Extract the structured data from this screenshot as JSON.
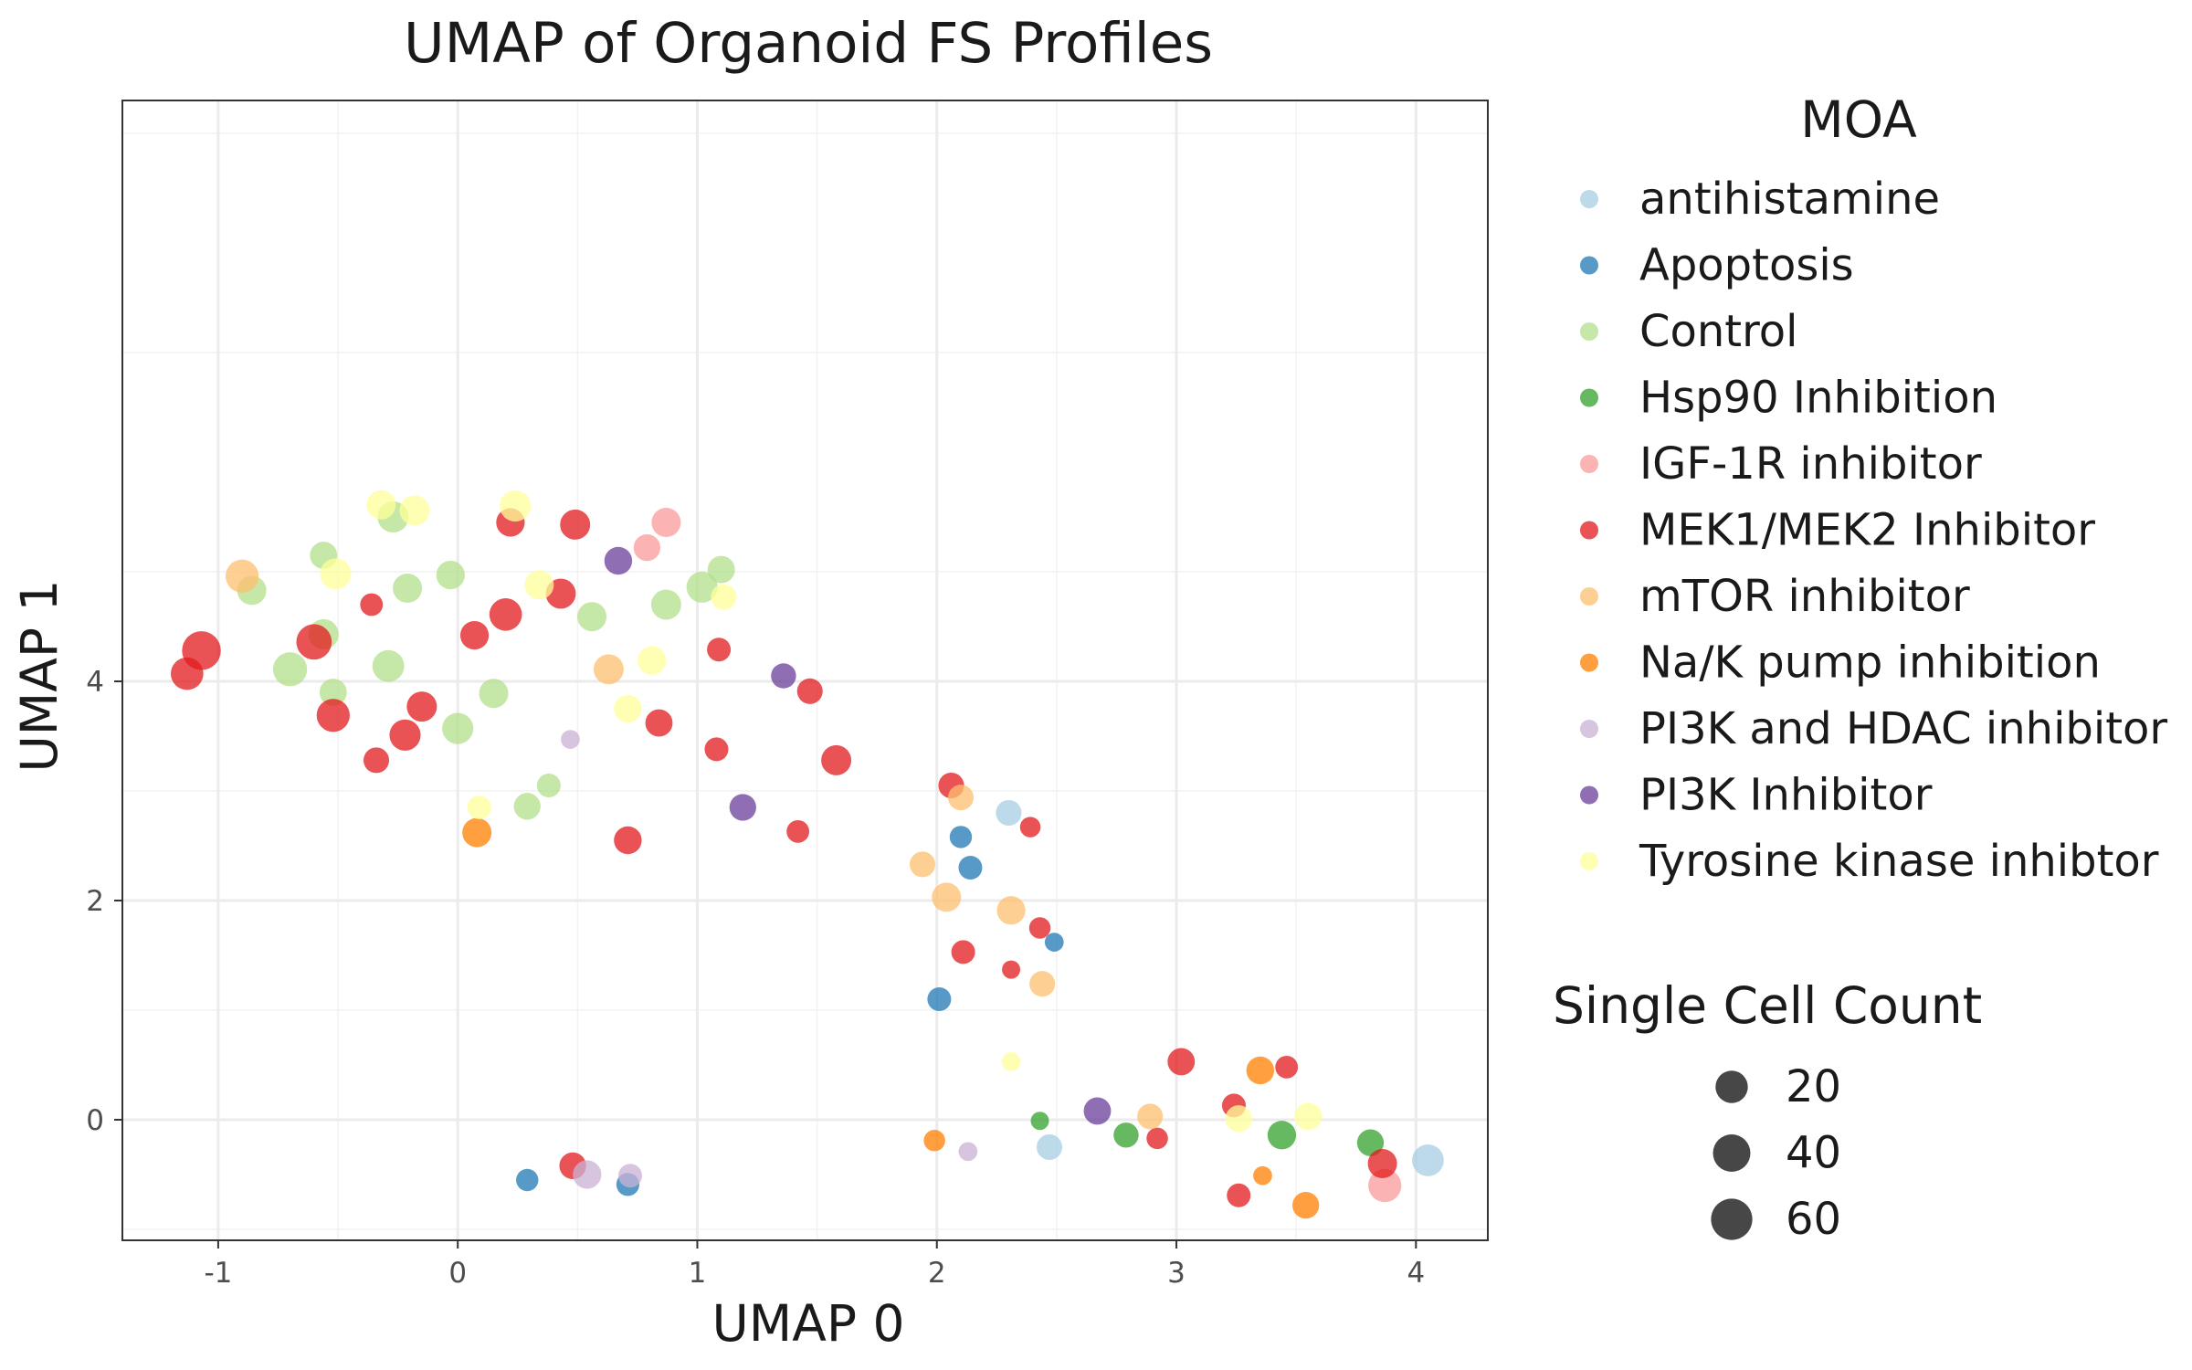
{
  "chart_data": {
    "type": "scatter",
    "title": "UMAP of Organoid FS Profiles",
    "xlabel": "UMAP 0",
    "ylabel": "UMAP 1",
    "xlim": [
      -1.4,
      4.3
    ],
    "ylim": [
      -1.1,
      9.3
    ],
    "x_ticks": [
      -1,
      0,
      1,
      2,
      3,
      4
    ],
    "x_tick_labels": [
      "-1",
      "0",
      "1",
      "2",
      "3",
      "4"
    ],
    "y_ticks": [
      0,
      2,
      4
    ],
    "y_tick_labels": [
      "0",
      "2",
      "4"
    ],
    "grid": true,
    "legend_position": "right",
    "color_legend_title": "MOA",
    "size_legend_title": "Single Cell Count",
    "size_legend": [
      {
        "value": 20,
        "label": "20"
      },
      {
        "value": 40,
        "label": "40"
      },
      {
        "value": 60,
        "label": "60"
      }
    ],
    "series": [
      {
        "name": "antihistamine",
        "color": "#a6cee3",
        "points": [
          {
            "x": 2.3,
            "y": 2.8,
            "size": 22
          },
          {
            "x": 2.47,
            "y": -0.25,
            "size": 22
          },
          {
            "x": 4.05,
            "y": -0.37,
            "size": 48
          }
        ]
      },
      {
        "name": "Apoptosis",
        "color": "#1f78b4",
        "points": [
          {
            "x": 2.1,
            "y": 2.58,
            "size": 12
          },
          {
            "x": 2.14,
            "y": 2.3,
            "size": 16
          },
          {
            "x": 2.49,
            "y": 1.62,
            "size": 5
          },
          {
            "x": 2.01,
            "y": 1.1,
            "size": 16
          },
          {
            "x": 0.29,
            "y": -0.55,
            "size": 12
          },
          {
            "x": 0.71,
            "y": -0.59,
            "size": 14
          }
        ]
      },
      {
        "name": "Control",
        "color": "#b2df8a",
        "points": [
          {
            "x": -0.27,
            "y": 5.5,
            "size": 45
          },
          {
            "x": -0.56,
            "y": 5.15,
            "size": 28
          },
          {
            "x": -0.86,
            "y": 4.83,
            "size": 36
          },
          {
            "x": -0.21,
            "y": 4.85,
            "size": 36
          },
          {
            "x": -0.03,
            "y": 4.97,
            "size": 33
          },
          {
            "x": 1.02,
            "y": 4.86,
            "size": 45
          },
          {
            "x": 1.1,
            "y": 5.02,
            "size": 28
          },
          {
            "x": 0.87,
            "y": 4.7,
            "size": 40
          },
          {
            "x": 0.56,
            "y": 4.59,
            "size": 36
          },
          {
            "x": -0.56,
            "y": 4.43,
            "size": 40
          },
          {
            "x": -0.7,
            "y": 4.11,
            "size": 60
          },
          {
            "x": -0.29,
            "y": 4.14,
            "size": 48
          },
          {
            "x": -0.52,
            "y": 3.9,
            "size": 28
          },
          {
            "x": 0.15,
            "y": 3.89,
            "size": 36
          },
          {
            "x": 0.0,
            "y": 3.57,
            "size": 45
          },
          {
            "x": 0.38,
            "y": 3.05,
            "size": 16
          },
          {
            "x": 0.29,
            "y": 2.86,
            "size": 26
          }
        ]
      },
      {
        "name": "Hsp90 Inhibition",
        "color": "#33a02c",
        "points": [
          {
            "x": 2.43,
            "y": -0.01,
            "size": 4
          },
          {
            "x": 2.79,
            "y": -0.14,
            "size": 20
          },
          {
            "x": 3.44,
            "y": -0.14,
            "size": 33
          },
          {
            "x": 3.81,
            "y": -0.21,
            "size": 26
          }
        ]
      },
      {
        "name": "IGF-1R inhibitor",
        "color": "#fb9a99",
        "points": [
          {
            "x": 0.87,
            "y": 5.45,
            "size": 36
          },
          {
            "x": 0.79,
            "y": 5.22,
            "size": 26
          },
          {
            "x": 3.87,
            "y": -0.6,
            "size": 55
          }
        ]
      },
      {
        "name": "MEK1/MEK2 Inhibitor",
        "color": "#e31a1c",
        "points": [
          {
            "x": 0.22,
            "y": 5.45,
            "size": 33
          },
          {
            "x": 0.49,
            "y": 5.43,
            "size": 40
          },
          {
            "x": -0.36,
            "y": 4.7,
            "size": 13
          },
          {
            "x": 0.43,
            "y": 4.8,
            "size": 40
          },
          {
            "x": 0.2,
            "y": 4.61,
            "size": 52
          },
          {
            "x": 0.07,
            "y": 4.42,
            "size": 33
          },
          {
            "x": -1.07,
            "y": 4.28,
            "size": 90
          },
          {
            "x": -0.6,
            "y": 4.36,
            "size": 68
          },
          {
            "x": -1.13,
            "y": 4.07,
            "size": 52
          },
          {
            "x": 1.09,
            "y": 4.29,
            "size": 16
          },
          {
            "x": 1.47,
            "y": 3.91,
            "size": 22
          },
          {
            "x": -0.15,
            "y": 3.77,
            "size": 40
          },
          {
            "x": -0.52,
            "y": 3.69,
            "size": 55
          },
          {
            "x": -0.22,
            "y": 3.51,
            "size": 45
          },
          {
            "x": 0.84,
            "y": 3.62,
            "size": 28
          },
          {
            "x": -0.34,
            "y": 3.28,
            "size": 22
          },
          {
            "x": 1.08,
            "y": 3.38,
            "size": 16
          },
          {
            "x": 1.58,
            "y": 3.28,
            "size": 40
          },
          {
            "x": 2.06,
            "y": 3.05,
            "size": 22
          },
          {
            "x": 2.39,
            "y": 2.67,
            "size": 8
          },
          {
            "x": 1.42,
            "y": 2.63,
            "size": 13
          },
          {
            "x": 0.71,
            "y": 2.55,
            "size": 30
          },
          {
            "x": 2.43,
            "y": 1.75,
            "size": 10
          },
          {
            "x": 2.11,
            "y": 1.53,
            "size": 16
          },
          {
            "x": 2.31,
            "y": 1.37,
            "size": 4
          },
          {
            "x": 3.02,
            "y": 0.53,
            "size": 28
          },
          {
            "x": 3.46,
            "y": 0.48,
            "size": 13
          },
          {
            "x": 3.24,
            "y": 0.13,
            "size": 16
          },
          {
            "x": 2.92,
            "y": -0.17,
            "size": 10
          },
          {
            "x": 0.48,
            "y": -0.42,
            "size": 26
          },
          {
            "x": 3.86,
            "y": -0.4,
            "size": 36
          },
          {
            "x": 3.26,
            "y": -0.69,
            "size": 16
          }
        ]
      },
      {
        "name": "mTOR inhibitor",
        "color": "#fdbf6f",
        "points": [
          {
            "x": -0.9,
            "y": 4.96,
            "size": 55
          },
          {
            "x": 0.63,
            "y": 4.11,
            "size": 40
          },
          {
            "x": 2.1,
            "y": 2.94,
            "size": 22
          },
          {
            "x": 1.94,
            "y": 2.33,
            "size": 22
          },
          {
            "x": 2.04,
            "y": 2.03,
            "size": 36
          },
          {
            "x": 2.31,
            "y": 1.91,
            "size": 33
          },
          {
            "x": 2.44,
            "y": 1.24,
            "size": 22
          },
          {
            "x": 2.89,
            "y": 0.03,
            "size": 22
          }
        ]
      },
      {
        "name": "Na/K pump inhibition",
        "color": "#ff7f00",
        "points": [
          {
            "x": 0.08,
            "y": 2.62,
            "size": 36
          },
          {
            "x": 3.35,
            "y": 0.45,
            "size": 30
          },
          {
            "x": 1.99,
            "y": -0.19,
            "size": 10
          },
          {
            "x": 3.36,
            "y": -0.51,
            "size": 5
          },
          {
            "x": 3.54,
            "y": -0.78,
            "size": 26
          }
        ]
      },
      {
        "name": "PI3K and HDAC inhibitor",
        "color": "#cab2d6",
        "points": [
          {
            "x": 0.47,
            "y": 3.47,
            "size": 5
          },
          {
            "x": 2.13,
            "y": -0.29,
            "size": 5
          },
          {
            "x": 0.54,
            "y": -0.5,
            "size": 33
          },
          {
            "x": 0.72,
            "y": -0.51,
            "size": 16
          }
        ]
      },
      {
        "name": "PI3K Inhibitor",
        "color": "#6a3d9a",
        "points": [
          {
            "x": 0.67,
            "y": 5.1,
            "size": 30
          },
          {
            "x": 1.36,
            "y": 4.05,
            "size": 20
          },
          {
            "x": 1.19,
            "y": 2.85,
            "size": 26
          },
          {
            "x": 2.67,
            "y": 0.08,
            "size": 28
          }
        ]
      },
      {
        "name": "Tyrosine kinase inhibtor",
        "color": "#ffff99",
        "points": [
          {
            "x": -0.32,
            "y": 5.61,
            "size": 36
          },
          {
            "x": -0.18,
            "y": 5.56,
            "size": 40
          },
          {
            "x": 0.24,
            "y": 5.6,
            "size": 45
          },
          {
            "x": -0.51,
            "y": 4.98,
            "size": 45
          },
          {
            "x": 0.34,
            "y": 4.88,
            "size": 36
          },
          {
            "x": 1.11,
            "y": 4.77,
            "size": 22
          },
          {
            "x": 0.81,
            "y": 4.19,
            "size": 33
          },
          {
            "x": 0.71,
            "y": 3.75,
            "size": 30
          },
          {
            "x": 0.09,
            "y": 2.85,
            "size": 16
          },
          {
            "x": 2.31,
            "y": 0.53,
            "size": 5
          },
          {
            "x": 3.26,
            "y": 0.01,
            "size": 26
          },
          {
            "x": 3.55,
            "y": 0.03,
            "size": 28
          }
        ]
      }
    ]
  }
}
